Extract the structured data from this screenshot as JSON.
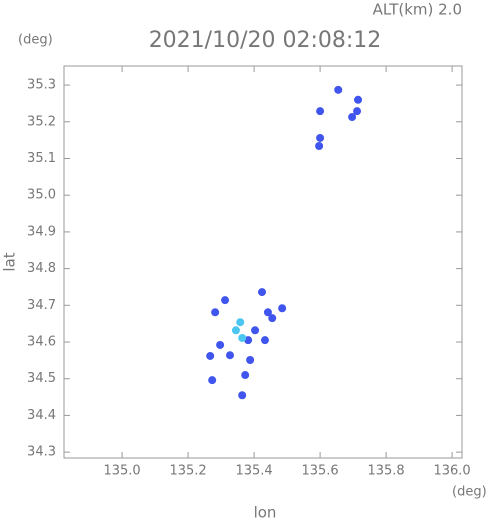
{
  "chart_data": {
    "type": "scatter",
    "title": "2021/10/20 02:08:12",
    "subtitle": "ALT(km) 2.0",
    "x_label": "lon",
    "y_label": "lat",
    "x_unit": "(deg)",
    "y_unit": "(deg)",
    "xlim": [
      134.824,
      136.03
    ],
    "ylim": [
      34.284,
      35.352
    ],
    "xticks": [
      {
        "value": 135,
        "label": "135.0"
      },
      135.2,
      135.4,
      135.6,
      135.8,
      {
        "value": 136,
        "label": "136.0"
      }
    ],
    "yticks": [
      34.3,
      34.4,
      34.5,
      34.6,
      34.7,
      34.8,
      34.9,
      {
        "value": 35,
        "label": "35.0"
      },
      35.1,
      35.2,
      35.3
    ],
    "x": [
      135.655,
      135.715,
      135.6,
      135.697,
      135.712,
      135.6,
      135.597,
      135.312,
      135.282,
      135.297,
      135.327,
      135.382,
      135.403,
      135.424,
      135.442,
      135.485,
      135.455,
      135.388,
      135.273,
      135.373,
      135.364,
      135.267,
      135.433,
      135.345,
      135.358,
      135.364
    ],
    "y": [
      35.287,
      35.26,
      35.229,
      35.213,
      35.229,
      35.156,
      35.134,
      34.714,
      34.681,
      34.592,
      34.564,
      34.605,
      34.632,
      34.736,
      34.681,
      34.692,
      34.665,
      34.551,
      34.496,
      34.51,
      34.455,
      34.562,
      34.605,
      34.632,
      34.654,
      34.611
    ],
    "point_colors": [
      "#3f55ee",
      "#3f55ee",
      "#3f55ee",
      "#3f55ee",
      "#3f55ee",
      "#3f55ee",
      "#3f55ee",
      "#3f55ee",
      "#3f55ee",
      "#3f55ee",
      "#3f55ee",
      "#3f55ee",
      "#3f55ee",
      "#3f55ee",
      "#3f55ee",
      "#3f55ee",
      "#3f55ee",
      "#3f55ee",
      "#3f55ee",
      "#3f55ee",
      "#3f55ee",
      "#3f55ee",
      "#3f55ee",
      "#4ac6f0",
      "#4ac6f0",
      "#4ac6f0"
    ],
    "marker_size": 4
  }
}
